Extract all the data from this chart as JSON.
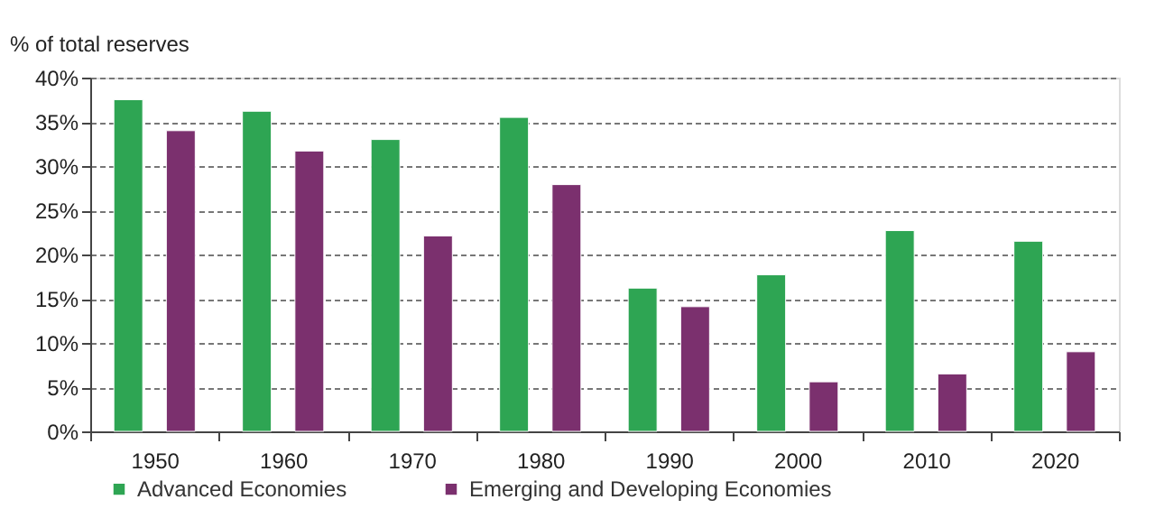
{
  "chart_data": {
    "type": "bar",
    "ylabel": "% of total reserves",
    "categories": [
      "1950",
      "1960",
      "1970",
      "1980",
      "1990",
      "2000",
      "2010",
      "2020"
    ],
    "series": [
      {
        "name": "Advanced Economies",
        "color": "#2ea553",
        "values": [
          37.5,
          36.2,
          33.0,
          35.5,
          16.2,
          17.7,
          22.7,
          21.5
        ]
      },
      {
        "name": "Emerging and Developing Economies",
        "color": "#7b306e",
        "values": [
          34.0,
          31.7,
          22.1,
          27.9,
          14.1,
          5.6,
          6.5,
          9.0
        ]
      }
    ],
    "ylim": [
      0,
      40
    ],
    "yticks": [
      {
        "value": 0,
        "label": "0%"
      },
      {
        "value": 5,
        "label": "5%"
      },
      {
        "value": 10,
        "label": "10%"
      },
      {
        "value": 15,
        "label": "15%"
      },
      {
        "value": 20,
        "label": "20%"
      },
      {
        "value": 25,
        "label": "25%"
      },
      {
        "value": 30,
        "label": "30%"
      },
      {
        "value": 35,
        "label": "35%"
      },
      {
        "value": 40,
        "label": "40%"
      }
    ],
    "grid": "y",
    "legend": "bottom left"
  }
}
